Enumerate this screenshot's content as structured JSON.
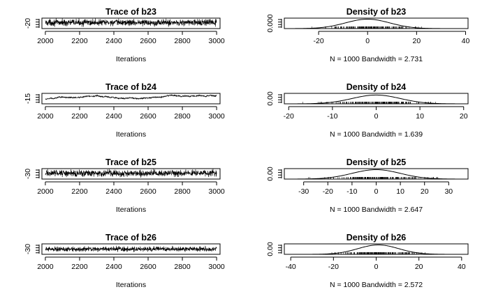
{
  "chart_data": [
    {
      "type": "line",
      "title": "Trace of b23",
      "xlabel": "Iterations",
      "x_ticks": [
        2000,
        2200,
        2400,
        2600,
        2800,
        3000
      ],
      "y_ticks": [
        -20
      ],
      "xlim": [
        1980,
        3020
      ],
      "ylim": [
        -27,
        -14
      ],
      "series": {
        "start": 2000,
        "end": 3000,
        "center": -19.5,
        "amplitude": 3.0,
        "drift": 0
      }
    },
    {
      "type": "area",
      "title": "Density of b23",
      "subtitle": "N = 1000   Bandwidth = 2.731",
      "x_ticks": [
        -20,
        0,
        20,
        40
      ],
      "y_ticks": [
        "0.000"
      ],
      "xlim": [
        -34,
        41
      ],
      "ylim": [
        0,
        0.02
      ],
      "series": {
        "mean": 0,
        "sd": 9.0,
        "peak": 0.018
      }
    },
    {
      "type": "line",
      "title": "Trace of b24",
      "xlabel": "Iterations",
      "x_ticks": [
        2000,
        2200,
        2400,
        2600,
        2800,
        3000
      ],
      "y_ticks": [
        -15
      ],
      "xlim": [
        1980,
        3020
      ],
      "ylim": [
        -17,
        3
      ],
      "series": {
        "start": 2000,
        "end": 3000,
        "center": -8,
        "amplitude": 1.0,
        "drift": 6,
        "wander": 3
      }
    },
    {
      "type": "area",
      "title": "Density of b24",
      "subtitle": "N = 1000   Bandwidth = 1.639",
      "x_ticks": [
        -20,
        -10,
        0,
        10,
        20
      ],
      "y_ticks": [
        "0.00"
      ],
      "xlim": [
        -21,
        21
      ],
      "ylim": [
        0,
        0.05
      ],
      "series": {
        "mean": 0,
        "sd": 5.5,
        "peak": 0.042
      }
    },
    {
      "type": "line",
      "title": "Trace of b25",
      "xlabel": "Iterations",
      "x_ticks": [
        2000,
        2200,
        2400,
        2600,
        2800,
        3000
      ],
      "y_ticks": [
        -30
      ],
      "xlim": [
        1980,
        3020
      ],
      "ylim": [
        -34,
        -19
      ],
      "series": {
        "start": 2000,
        "end": 3000,
        "center": -25.5,
        "amplitude": 3.5,
        "drift": 0
      }
    },
    {
      "type": "area",
      "title": "Density of b25",
      "subtitle": "N = 1000   Bandwidth = 2.647",
      "x_ticks": [
        -30,
        -20,
        -10,
        0,
        10,
        20,
        30
      ],
      "y_ticks": [
        "0.00"
      ],
      "xlim": [
        -38,
        38
      ],
      "ylim": [
        0,
        0.02
      ],
      "series": {
        "mean": 0,
        "sd": 10.0,
        "peak": 0.018
      }
    },
    {
      "type": "line",
      "title": "Trace of b26",
      "xlabel": "Iterations",
      "x_ticks": [
        2000,
        2200,
        2400,
        2600,
        2800,
        3000
      ],
      "y_ticks": [
        -30
      ],
      "xlim": [
        1980,
        3020
      ],
      "ylim": [
        -35,
        -17
      ],
      "series": {
        "start": 2000,
        "end": 3000,
        "center": -26,
        "amplitude": 3.0,
        "drift": 0
      }
    },
    {
      "type": "area",
      "title": "Density of b26",
      "subtitle": "N = 1000   Bandwidth = 2.572",
      "x_ticks": [
        -40,
        -20,
        0,
        20,
        40
      ],
      "y_ticks": [
        "0.00"
      ],
      "xlim": [
        -43,
        43
      ],
      "ylim": [
        0,
        0.02
      ],
      "series": {
        "mean": 1,
        "sd": 9.5,
        "peak": 0.018
      }
    }
  ]
}
